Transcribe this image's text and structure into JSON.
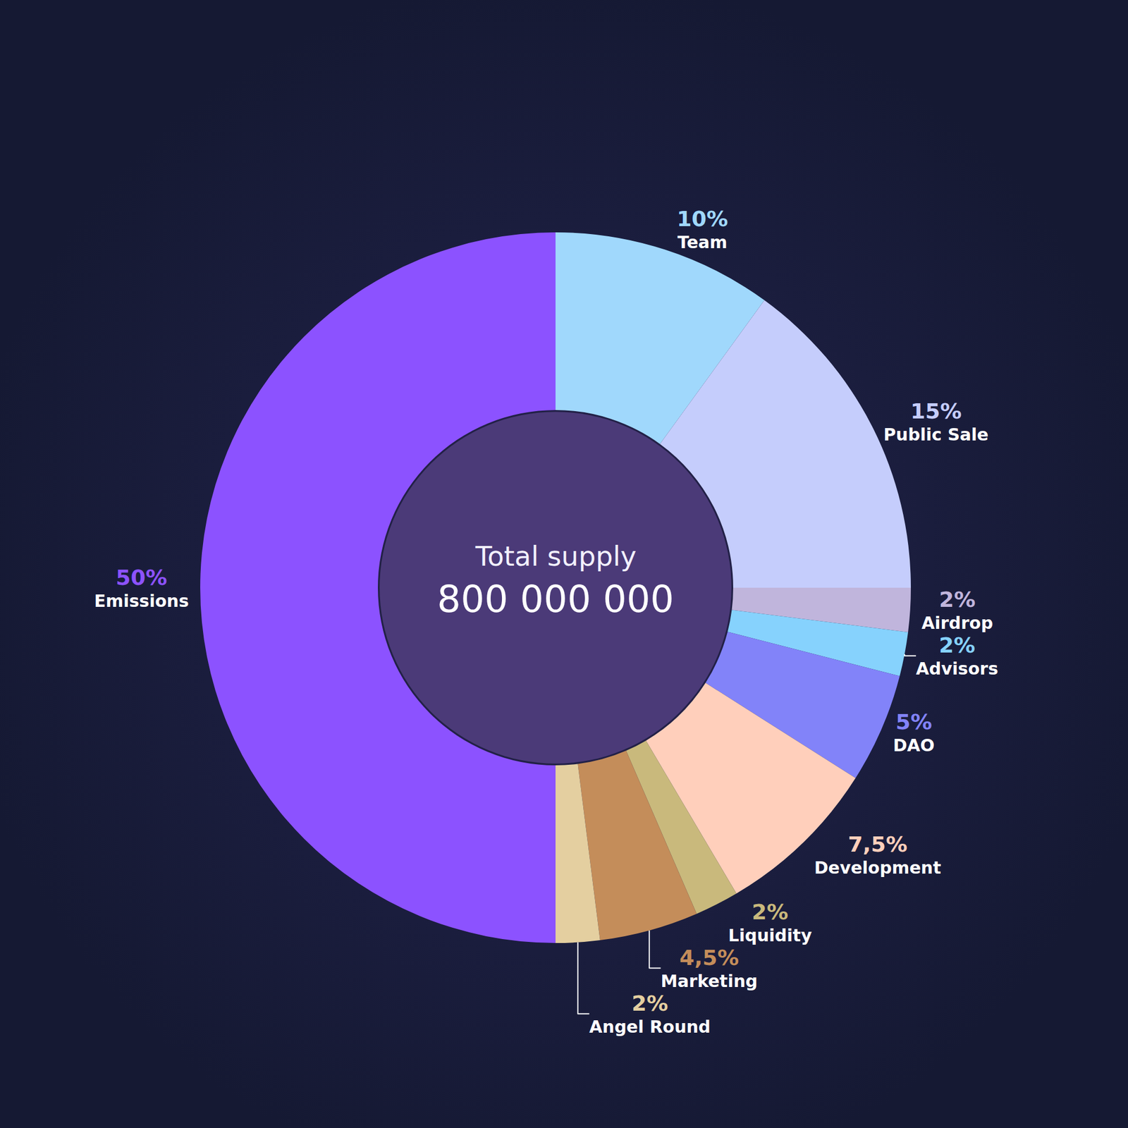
{
  "chart_data": {
    "type": "donut",
    "categories": [
      "Team",
      "Public Sale",
      "Airdrop",
      "Advisors",
      "DAO",
      "Development",
      "Liquidity",
      "Marketing",
      "Angel Round",
      "Emissions"
    ],
    "values": [
      10,
      15,
      2,
      2,
      5,
      7.5,
      2,
      4.5,
      2,
      50
    ],
    "value_labels": [
      "10%",
      "15%",
      "2%",
      "2%",
      "5%",
      "7,5%",
      "2%",
      "4,5%",
      "2%",
      "50%"
    ],
    "colors": [
      "#a0d8fc",
      "#c5cdfc",
      "#c0b5dc",
      "#86d2fd",
      "#8283f9",
      "#ffcfbb",
      "#c9b97c",
      "#c48d5a",
      "#e4cfa0",
      "#8c52ff"
    ],
    "data_labels": true,
    "center_text": "Total supply",
    "center_value": 800000000,
    "center_value_label": "800 000 000"
  }
}
